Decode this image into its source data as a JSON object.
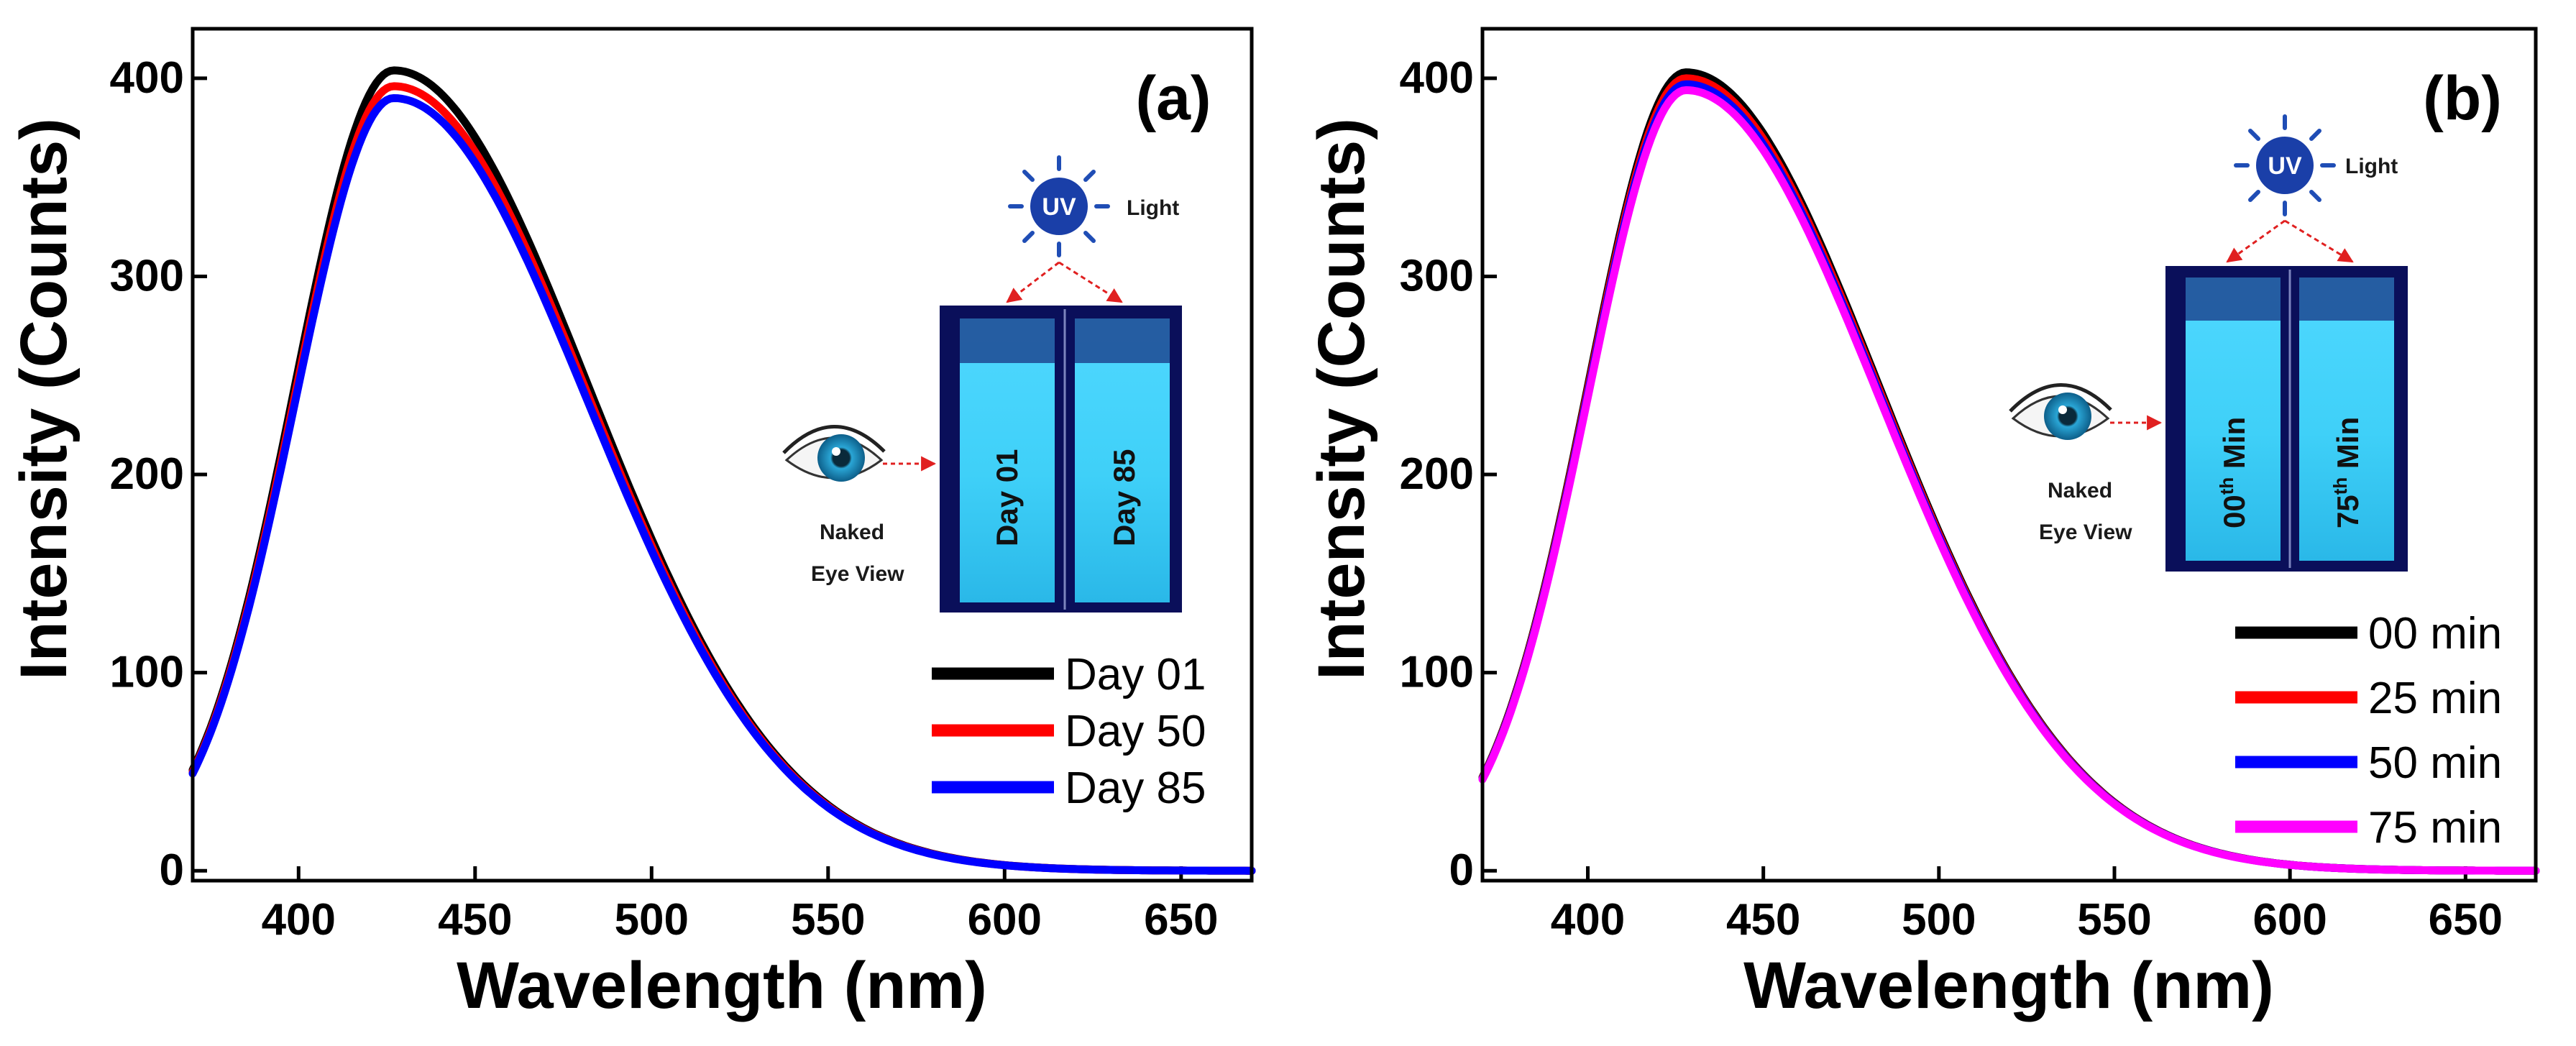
{
  "chart_data": [
    {
      "type": "line",
      "panel_label": "(a)",
      "xlabel": "Wavelength (nm)",
      "ylabel": "Intensity (Counts)",
      "xlim": [
        370,
        670
      ],
      "ylim": [
        -5,
        425
      ],
      "xticks": [
        400,
        450,
        500,
        550,
        600,
        650
      ],
      "yticks": [
        0,
        100,
        200,
        300,
        400
      ],
      "legend_position": "bottom-right",
      "series": [
        {
          "name": "Day 01",
          "color": "#000000",
          "peak_x": 427,
          "peak_y": 404
        },
        {
          "name": "Day 50",
          "color": "#ff0000",
          "peak_x": 427,
          "peak_y": 396
        },
        {
          "name": "Day 85",
          "color": "#0000ff",
          "peak_x": 427,
          "peak_y": 390
        }
      ],
      "sample_points": [
        {
          "x": 370,
          "y": 45
        },
        {
          "x": 400,
          "y": 245
        },
        {
          "x": 427,
          "y": 400
        },
        {
          "x": 450,
          "y": 330
        },
        {
          "x": 500,
          "y": 130
        },
        {
          "x": 550,
          "y": 40
        },
        {
          "x": 600,
          "y": 10
        },
        {
          "x": 670,
          "y": 2
        }
      ],
      "inset": {
        "uv_text": "UV",
        "light_text": "Light",
        "eye_caption_1": "Naked",
        "eye_caption_2": "Eye View",
        "cuvettes": [
          "Day 01",
          "Day 85"
        ]
      }
    },
    {
      "type": "line",
      "panel_label": "(b)",
      "xlabel": "Wavelength (nm)",
      "ylabel": "Intensity (Counts)",
      "xlim": [
        370,
        670
      ],
      "ylim": [
        -5,
        425
      ],
      "xticks": [
        400,
        450,
        500,
        550,
        600,
        650
      ],
      "yticks": [
        0,
        100,
        200,
        300,
        400
      ],
      "legend_position": "bottom-right",
      "series": [
        {
          "name": "00 min",
          "color": "#000000",
          "peak_x": 428,
          "peak_y": 403
        },
        {
          "name": "25 min",
          "color": "#ff0000",
          "peak_x": 428,
          "peak_y": 400
        },
        {
          "name": "50 min",
          "color": "#0000ff",
          "peak_x": 428,
          "peak_y": 397
        },
        {
          "name": "75 min",
          "color": "#ff00ff",
          "peak_x": 428,
          "peak_y": 394
        }
      ],
      "sample_points": [
        {
          "x": 370,
          "y": 45
        },
        {
          "x": 400,
          "y": 240
        },
        {
          "x": 428,
          "y": 400
        },
        {
          "x": 450,
          "y": 330
        },
        {
          "x": 500,
          "y": 130
        },
        {
          "x": 550,
          "y": 42
        },
        {
          "x": 600,
          "y": 12
        },
        {
          "x": 670,
          "y": 2
        }
      ],
      "inset": {
        "uv_text": "UV",
        "light_text": "Light",
        "eye_caption_1": "Naked",
        "eye_caption_2": "Eye View",
        "cuvettes": [
          {
            "prefix": "00",
            "sup": "th",
            "suffix": " Min"
          },
          {
            "prefix": "75",
            "sup": "th",
            "suffix": " Min"
          }
        ]
      }
    }
  ]
}
